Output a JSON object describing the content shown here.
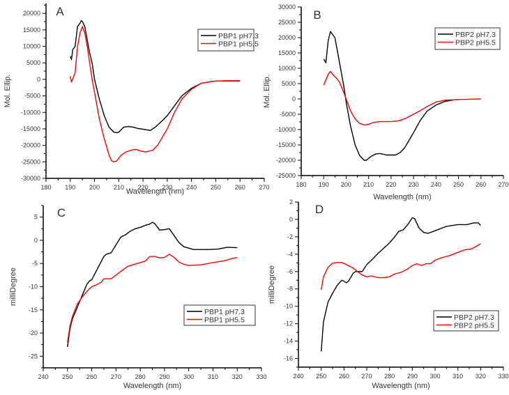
{
  "chart_data": [
    {
      "type": "line",
      "panel_label": "A",
      "xlabel": "Wavelength (nm)",
      "ylabel": "Mol. Ellip.",
      "xlim": [
        180,
        270
      ],
      "ylim": [
        -30000,
        23000
      ],
      "xticks": [
        180,
        190,
        200,
        210,
        220,
        230,
        240,
        250,
        260,
        270
      ],
      "yticks": [
        -30000,
        -25000,
        -20000,
        -15000,
        -10000,
        -5000,
        0,
        5000,
        10000,
        15000,
        20000
      ],
      "grid": false,
      "legend_position": "top-right",
      "series": [
        {
          "name": "PBP1 pH7.3",
          "color": "#000000",
          "x": [
            190,
            190.5,
            191,
            192,
            193,
            194,
            194.5,
            195,
            196,
            197,
            198,
            199,
            200,
            202,
            204,
            206,
            208,
            209,
            210,
            212,
            214,
            216,
            218,
            220,
            223,
            225,
            228,
            230,
            233,
            236,
            240,
            244,
            248,
            250,
            255,
            260
          ],
          "y": [
            7000,
            6000,
            9000,
            10000,
            16000,
            17000,
            17800,
            17500,
            16000,
            12000,
            8000,
            5000,
            0,
            -6000,
            -11000,
            -14500,
            -16000,
            -16200,
            -16000,
            -14500,
            -14300,
            -14500,
            -14900,
            -15100,
            -15500,
            -14500,
            -12500,
            -11000,
            -8000,
            -5000,
            -2700,
            -1200,
            -700,
            -500,
            -500,
            -500
          ]
        },
        {
          "name": "PBP1 pH5.5",
          "color": "#ff0000",
          "x": [
            190,
            190.5,
            191.5,
            192,
            193,
            194,
            195,
            196,
            197,
            198,
            199,
            200,
            202,
            204,
            206,
            207,
            208,
            209,
            211,
            213,
            215,
            217,
            219,
            221,
            224,
            226,
            228,
            230,
            233,
            236,
            240,
            244,
            250,
            255,
            260
          ],
          "y": [
            1000,
            -800,
            1000,
            2000,
            10000,
            14000,
            16000,
            14000,
            10000,
            5000,
            0,
            -4000,
            -12000,
            -18000,
            -23000,
            -24700,
            -25000,
            -24800,
            -23000,
            -22000,
            -21500,
            -21200,
            -21700,
            -22000,
            -21500,
            -20000,
            -17500,
            -15000,
            -10000,
            -6000,
            -3000,
            -1200,
            -500,
            -400,
            -400
          ]
        }
      ]
    },
    {
      "type": "line",
      "panel_label": "B",
      "xlabel": "Wavelength (nm)",
      "ylabel": "Mol. Ellip.",
      "xlim": [
        180,
        270
      ],
      "ylim": [
        -25000,
        30000
      ],
      "xticks": [
        180,
        190,
        200,
        210,
        220,
        230,
        240,
        250,
        260,
        270
      ],
      "yticks": [
        -25000,
        -20000,
        -15000,
        -10000,
        -5000,
        0,
        5000,
        10000,
        15000,
        20000,
        25000,
        30000
      ],
      "grid": false,
      "legend_position": "top-right",
      "series": [
        {
          "name": "PBP2 pH7.3",
          "color": "#000000",
          "x": [
            190,
            191,
            192,
            193,
            194,
            195,
            196,
            198,
            199,
            200,
            202,
            204,
            206,
            208,
            209,
            211,
            213,
            215,
            218,
            222,
            224,
            226,
            228,
            230,
            233,
            236,
            240,
            244,
            248,
            250
          ],
          "y": [
            13000,
            11800,
            19000,
            22000,
            21000,
            20000,
            16000,
            8000,
            4000,
            -1000,
            -9000,
            -15000,
            -18500,
            -20000,
            -20000,
            -18800,
            -18000,
            -17800,
            -18300,
            -18300,
            -17500,
            -16000,
            -13500,
            -11000,
            -7000,
            -4000,
            -2000,
            -800,
            -300,
            -200
          ]
        },
        {
          "name": "PBP2 pH5.5",
          "color": "#ff0000",
          "x": [
            190,
            192,
            193,
            194,
            196,
            197,
            199,
            200,
            202,
            204,
            206,
            208,
            210,
            212,
            215,
            220,
            223,
            226,
            230,
            233,
            236,
            240,
            244,
            250,
            255,
            260
          ],
          "y": [
            4500,
            8000,
            9000,
            8000,
            6500,
            5500,
            2000,
            0,
            -4000,
            -6500,
            -8000,
            -8500,
            -8300,
            -7700,
            -7400,
            -7400,
            -7200,
            -6500,
            -5000,
            -3800,
            -2500,
            -1000,
            -400,
            -200,
            -100,
            0
          ]
        }
      ]
    },
    {
      "type": "line",
      "panel_label": "C",
      "xlabel": "Wavelength (nm)",
      "ylabel": "milliDegree",
      "xlim": [
        240,
        330
      ],
      "ylim": [
        -27.5,
        7.5
      ],
      "xticks": [
        240,
        250,
        260,
        270,
        280,
        290,
        300,
        310,
        320,
        330
      ],
      "yticks": [
        -25,
        -20,
        -15,
        -10,
        -5,
        0,
        5
      ],
      "grid": false,
      "legend_position": "lower-right",
      "series": [
        {
          "name": "PBP1 pH7.3",
          "color": "#000000",
          "x": [
            250,
            251,
            252,
            254,
            256,
            258,
            259,
            260,
            262,
            265,
            266,
            268,
            270,
            272,
            274,
            276,
            278,
            280,
            282,
            284,
            285,
            286,
            288,
            290,
            292,
            294,
            296,
            298,
            302,
            305,
            308,
            312,
            316,
            320
          ],
          "y": [
            -23,
            -19,
            -17,
            -14.5,
            -12,
            -9.5,
            -8.8,
            -8.5,
            -6.5,
            -3.5,
            -3,
            -2.7,
            -1,
            0.7,
            1.2,
            2,
            2.5,
            2.8,
            3.2,
            3.5,
            3.9,
            3.6,
            2.2,
            2.3,
            2.5,
            1,
            -0.5,
            -1.4,
            -2,
            -2,
            -2,
            -1.9,
            -1.5,
            -1.6
          ]
        },
        {
          "name": "PBP1 pH5.5",
          "color": "#ff0000",
          "x": [
            250,
            251,
            252,
            254,
            256,
            258,
            260,
            262,
            264,
            265,
            268,
            270,
            272,
            275,
            280,
            282,
            284,
            286,
            288,
            290,
            292,
            294,
            296,
            298,
            300,
            305,
            310,
            315,
            318,
            320
          ],
          "y": [
            -22,
            -18.5,
            -16.5,
            -13.8,
            -12.3,
            -11,
            -10,
            -9.6,
            -9,
            -8.3,
            -8.3,
            -7.5,
            -6.7,
            -5.6,
            -4.8,
            -4.5,
            -3.5,
            -3.5,
            -3.8,
            -3.7,
            -3,
            -3.7,
            -4.7,
            -5.2,
            -5.4,
            -5.3,
            -4.8,
            -4.4,
            -3.9,
            -3.7
          ]
        }
      ]
    },
    {
      "type": "line",
      "panel_label": "D",
      "xlabel": "Wavelength (nm)",
      "ylabel": "milliDegree",
      "xlim": [
        240,
        330
      ],
      "ylim": [
        -17,
        2
      ],
      "xticks": [
        240,
        250,
        260,
        270,
        280,
        290,
        300,
        310,
        320,
        330
      ],
      "yticks": [
        -16,
        -14,
        -12,
        -10,
        -8,
        -6,
        -4,
        -2,
        0,
        2
      ],
      "grid": false,
      "legend_position": "lower-right",
      "series": [
        {
          "name": "PBP2 pH7.3",
          "color": "#000000",
          "x": [
            250,
            251,
            253,
            255,
            257,
            259,
            260,
            261,
            262,
            264,
            265,
            268,
            270,
            272,
            275,
            280,
            282,
            284,
            286,
            288,
            290,
            291,
            293,
            295,
            297,
            300,
            305,
            310,
            314,
            317,
            319,
            320
          ],
          "y": [
            -15.2,
            -11.8,
            -9.5,
            -8.5,
            -7.6,
            -7,
            -7.1,
            -7.3,
            -7.1,
            -6.2,
            -6,
            -6,
            -5.2,
            -4.7,
            -3.9,
            -2.7,
            -2.1,
            -1.4,
            -1.2,
            -0.6,
            0.2,
            0.1,
            -1,
            -1.5,
            -1.6,
            -1.3,
            -0.8,
            -0.6,
            -0.6,
            -0.4,
            -0.4,
            -0.7
          ]
        },
        {
          "name": "PBP2 pH5.5",
          "color": "#ff0000",
          "x": [
            250,
            251,
            253,
            255,
            257,
            259,
            261,
            264,
            266,
            268,
            270,
            272,
            275,
            278,
            280,
            282,
            285,
            288,
            290,
            292,
            294,
            296,
            298,
            300,
            303,
            306,
            310,
            313,
            316,
            320
          ],
          "y": [
            -8.1,
            -6.6,
            -5.5,
            -5.05,
            -4.95,
            -4.95,
            -5.2,
            -5.6,
            -6,
            -6.4,
            -6.6,
            -6.5,
            -6.7,
            -6.7,
            -6.6,
            -6.3,
            -6.1,
            -5.7,
            -5.3,
            -5.1,
            -5.3,
            -5.1,
            -5.1,
            -4.7,
            -4.4,
            -4.2,
            -3.8,
            -3.5,
            -3.4,
            -2.8
          ]
        }
      ]
    }
  ]
}
